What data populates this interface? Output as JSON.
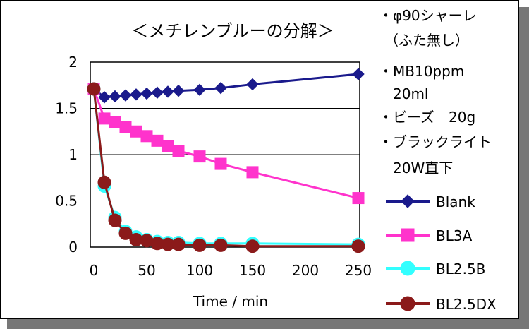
{
  "colors": {
    "Blank": "#1a1a8c",
    "BL3A": "#ff33cc",
    "BL2.5B": "#33ffff",
    "BL2.5DX": "#8b1a1a"
  },
  "notes": [
    "・φ90シャーレ",
    "（ふた無し）",
    "・MB10ppm",
    "20ml",
    "・ビーズ　20g",
    "・ブラックライト",
    "20W直下"
  ],
  "chart_data": {
    "type": "line",
    "title": "＜メチレンブルーの分解＞",
    "xlabel": "Time / min",
    "ylabel": "",
    "xlim": [
      0,
      250
    ],
    "ylim": [
      0,
      2
    ],
    "x_ticks": [
      "0",
      "50",
      "100",
      "150",
      "200",
      "250"
    ],
    "y_ticks": [
      "0",
      "0.5",
      "1",
      "1.5",
      "2"
    ],
    "grid": true,
    "legend_position": "right",
    "series": [
      {
        "name": "Blank",
        "marker": "diamond",
        "x": [
          0,
          10,
          20,
          30,
          40,
          50,
          60,
          70,
          80,
          100,
          120,
          150,
          250
        ],
        "y": [
          1.71,
          1.62,
          1.63,
          1.64,
          1.65,
          1.66,
          1.67,
          1.68,
          1.69,
          1.7,
          1.72,
          1.76,
          1.87
        ]
      },
      {
        "name": "BL3A",
        "marker": "square",
        "x": [
          0,
          10,
          20,
          30,
          40,
          50,
          60,
          70,
          80,
          100,
          120,
          150,
          250
        ],
        "y": [
          1.71,
          1.39,
          1.35,
          1.3,
          1.25,
          1.2,
          1.15,
          1.09,
          1.04,
          0.98,
          0.9,
          0.81,
          0.53
        ]
      },
      {
        "name": "BL2.5B",
        "marker": "circle",
        "x": [
          0,
          10,
          20,
          30,
          40,
          50,
          60,
          70,
          80,
          100,
          120,
          150,
          250
        ],
        "y": [
          1.71,
          0.66,
          0.32,
          0.17,
          0.11,
          0.08,
          0.06,
          0.05,
          0.05,
          0.04,
          0.04,
          0.04,
          0.03
        ]
      },
      {
        "name": "BL2.5DX",
        "marker": "circle",
        "x": [
          0,
          10,
          20,
          30,
          40,
          50,
          60,
          70,
          80,
          100,
          120,
          150,
          250
        ],
        "y": [
          1.71,
          0.7,
          0.29,
          0.15,
          0.08,
          0.07,
          0.04,
          0.03,
          0.03,
          0.02,
          0.02,
          0.01,
          0.01
        ]
      }
    ]
  }
}
